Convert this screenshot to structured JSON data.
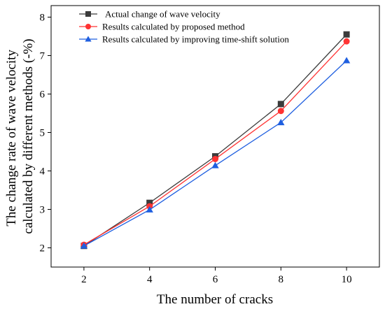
{
  "chart_data": {
    "type": "line",
    "title": "",
    "xlabel": "The number of cracks",
    "ylabel_lines": [
      "The change rate of wave velocity",
      "calculated by different methods (-%)"
    ],
    "x": [
      2,
      4,
      6,
      8,
      10
    ],
    "x_ticks": [
      "2",
      "4",
      "6",
      "8",
      "10"
    ],
    "y_ticks": [
      "2",
      "3",
      "4",
      "5",
      "6",
      "7",
      "8"
    ],
    "xlim": [
      1,
      11
    ],
    "ylim": [
      1.5,
      8.3
    ],
    "grid": false,
    "legend_position": "top-left",
    "series": [
      {
        "name": "Actual change of wave velocity",
        "values": [
          2.05,
          3.17,
          4.38,
          5.74,
          7.55
        ],
        "color": "#3b3b3b",
        "marker": "square"
      },
      {
        "name": "Results calculated by proposed method",
        "values": [
          2.08,
          3.08,
          4.31,
          5.56,
          7.37
        ],
        "color": "#ff3333",
        "marker": "circle"
      },
      {
        "name": "Results calculated by improving time-shift solution",
        "values": [
          2.05,
          2.99,
          4.14,
          5.26,
          6.87
        ],
        "color": "#1f5fe0",
        "marker": "triangle"
      }
    ]
  }
}
